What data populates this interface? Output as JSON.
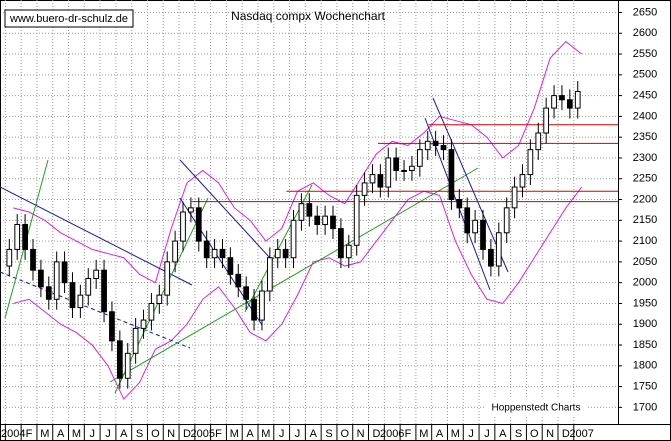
{
  "chart_data": {
    "type": "candlestick",
    "title": "Nasdaq compx Wochenchart",
    "watermark": "www.buero-dr-schulz.de",
    "source": "Hoppenstedt Charts",
    "xlim": [
      -0.15,
      38.8
    ],
    "ylim": [
      1660,
      2680
    ],
    "yticks": [
      1700,
      1750,
      1800,
      1850,
      1900,
      1950,
      2000,
      2050,
      2100,
      2150,
      2200,
      2250,
      2300,
      2350,
      2400,
      2450,
      2500,
      2550,
      2600,
      2650
    ],
    "xticks": [
      {
        "value": 0,
        "label": "2004"
      },
      {
        "value": 1,
        "label": "F"
      },
      {
        "value": 2,
        "label": "M"
      },
      {
        "value": 3,
        "label": "A"
      },
      {
        "value": 4,
        "label": "M"
      },
      {
        "value": 5,
        "label": "J"
      },
      {
        "value": 6,
        "label": "J"
      },
      {
        "value": 7,
        "label": "A"
      },
      {
        "value": 8,
        "label": "S"
      },
      {
        "value": 9,
        "label": "O"
      },
      {
        "value": 10,
        "label": "N"
      },
      {
        "value": 11,
        "label": "D"
      },
      {
        "value": 12,
        "label": "2005"
      },
      {
        "value": 13,
        "label": "F"
      },
      {
        "value": 14,
        "label": "M"
      },
      {
        "value": 15,
        "label": "A"
      },
      {
        "value": 16,
        "label": "M"
      },
      {
        "value": 17,
        "label": "J"
      },
      {
        "value": 18,
        "label": "J"
      },
      {
        "value": 19,
        "label": "A"
      },
      {
        "value": 20,
        "label": "S"
      },
      {
        "value": 21,
        "label": "O"
      },
      {
        "value": 22,
        "label": "N"
      },
      {
        "value": 23,
        "label": "D"
      },
      {
        "value": 24,
        "label": "2006"
      },
      {
        "value": 25,
        "label": "F"
      },
      {
        "value": 26,
        "label": "M"
      },
      {
        "value": 27,
        "label": "A"
      },
      {
        "value": 28,
        "label": "M"
      },
      {
        "value": 29,
        "label": "J"
      },
      {
        "value": 30,
        "label": "J"
      },
      {
        "value": 31,
        "label": "A"
      },
      {
        "value": 32,
        "label": "S"
      },
      {
        "value": 33,
        "label": "O"
      },
      {
        "value": 34,
        "label": "N"
      },
      {
        "value": 35,
        "label": "D"
      },
      {
        "value": 36,
        "label": "2007"
      }
    ],
    "grid": true,
    "up_color": "#ffffff",
    "down_color": "#000000",
    "x": [
      0.25,
      0.75,
      1.25,
      1.75,
      2.25,
      2.75,
      3.25,
      3.75,
      4.25,
      4.75,
      5.25,
      5.75,
      6.25,
      6.75,
      7.25,
      7.75,
      8.25,
      8.75,
      9.25,
      9.75,
      10.25,
      10.75,
      11.25,
      11.75,
      12.25,
      12.75,
      13.25,
      13.75,
      14.25,
      14.75,
      15.25,
      15.75,
      16.25,
      16.75,
      17.25,
      17.75,
      18.25,
      18.75,
      19.25,
      19.75,
      20.25,
      20.75,
      21.25,
      21.75,
      22.25,
      22.75,
      23.25,
      23.75,
      24.25,
      24.75,
      25.25,
      25.75,
      26.25,
      26.75,
      27.25,
      27.75,
      28.25,
      28.75,
      29.25,
      29.75,
      30.25,
      30.75,
      31.25,
      31.75,
      32.25,
      32.75,
      33.25,
      33.75,
      34.25,
      34.75,
      35.25,
      35.75,
      36.25
    ],
    "open": [
      2040,
      2080,
      2140,
      2080,
      2030,
      1990,
      1960,
      2050,
      2000,
      1940,
      1970,
      2010,
      2030,
      1930,
      1860,
      1770,
      1830,
      1890,
      1910,
      1950,
      1970,
      2050,
      2100,
      2170,
      2180,
      2100,
      2060,
      2080,
      2060,
      2020,
      1990,
      1960,
      1910,
      1980,
      2060,
      2080,
      2060,
      2150,
      2190,
      2160,
      2140,
      2160,
      2130,
      2060,
      2090,
      2210,
      2240,
      2260,
      2230,
      2300,
      2270,
      2270,
      2280,
      2320,
      2340,
      2330,
      2320,
      2200,
      2180,
      2120,
      2150,
      2080,
      2040,
      2120,
      2180,
      2230,
      2260,
      2320,
      2360,
      2420,
      2450,
      2440,
      2420
    ],
    "high": [
      2105,
      2165,
      2165,
      2105,
      2055,
      2015,
      2075,
      2075,
      2025,
      1995,
      2035,
      2055,
      2055,
      1955,
      1885,
      1855,
      1915,
      1935,
      1975,
      1995,
      2075,
      2125,
      2195,
      2205,
      2205,
      2125,
      2105,
      2105,
      2085,
      2045,
      2015,
      1985,
      2005,
      2085,
      2105,
      2105,
      2175,
      2215,
      2215,
      2185,
      2185,
      2185,
      2155,
      2115,
      2235,
      2265,
      2285,
      2285,
      2325,
      2325,
      2295,
      2305,
      2345,
      2365,
      2365,
      2355,
      2345,
      2225,
      2205,
      2175,
      2175,
      2105,
      2145,
      2205,
      2255,
      2285,
      2345,
      2385,
      2445,
      2475,
      2475,
      2465,
      2485
    ],
    "low": [
      2015,
      2055,
      2055,
      2005,
      1965,
      1935,
      1935,
      1975,
      1915,
      1915,
      1945,
      1985,
      1905,
      1835,
      1745,
      1745,
      1805,
      1865,
      1885,
      1925,
      1945,
      2025,
      2075,
      2145,
      2075,
      2035,
      2035,
      2035,
      1995,
      1965,
      1935,
      1885,
      1885,
      1955,
      2035,
      2035,
      2035,
      2125,
      2135,
      2115,
      2115,
      2105,
      2035,
      2035,
      2065,
      2185,
      2215,
      2205,
      2205,
      2245,
      2245,
      2245,
      2255,
      2295,
      2305,
      2295,
      2175,
      2155,
      2095,
      2095,
      2055,
      2015,
      2015,
      2095,
      2155,
      2205,
      2235,
      2295,
      2335,
      2395,
      2415,
      2395,
      2395
    ],
    "close": [
      2080,
      2140,
      2080,
      2030,
      1990,
      1960,
      2050,
      2000,
      1940,
      1970,
      2010,
      2030,
      1930,
      1860,
      1770,
      1830,
      1890,
      1910,
      1950,
      1970,
      2050,
      2100,
      2170,
      2180,
      2100,
      2060,
      2080,
      2060,
      2020,
      1990,
      1960,
      1910,
      1980,
      2060,
      2080,
      2060,
      2150,
      2190,
      2160,
      2140,
      2160,
      2130,
      2060,
      2090,
      2210,
      2240,
      2260,
      2230,
      2300,
      2270,
      2270,
      2280,
      2320,
      2340,
      2330,
      2320,
      2200,
      2180,
      2120,
      2150,
      2080,
      2040,
      2120,
      2180,
      2230,
      2260,
      2320,
      2360,
      2420,
      2450,
      2440,
      2420,
      2460
    ],
    "bands": {
      "color": "#e020e0",
      "x": [
        0.5,
        1.5,
        2.5,
        3.5,
        4.5,
        5.5,
        6.5,
        7.5,
        8.5,
        9.5,
        10.5,
        11.5,
        12.5,
        13.5,
        14.5,
        15.5,
        16.5,
        17.5,
        18.5,
        19.5,
        20.5,
        21.5,
        22.5,
        23.5,
        24.5,
        25.5,
        26.5,
        27.5,
        28.5,
        29.5,
        30.5,
        31.5,
        32.5,
        33.5,
        34.5,
        35.5,
        36.5
      ],
      "upper": [
        2180,
        2170,
        2150,
        2120,
        2100,
        2080,
        2070,
        2060,
        2020,
        2000,
        2130,
        2240,
        2270,
        2240,
        2180,
        2150,
        2100,
        2130,
        2220,
        2240,
        2210,
        2190,
        2250,
        2310,
        2340,
        2330,
        2360,
        2400,
        2390,
        2380,
        2350,
        2300,
        2330,
        2420,
        2540,
        2580,
        2550
      ],
      "lower": [
        1950,
        1960,
        1930,
        1900,
        1880,
        1850,
        1800,
        1720,
        1760,
        1840,
        1860,
        1900,
        1960,
        1990,
        1940,
        1880,
        1860,
        1900,
        1970,
        2050,
        2060,
        2040,
        2050,
        2100,
        2150,
        2200,
        2220,
        2210,
        2100,
        2020,
        1960,
        1950,
        2000,
        2060,
        2120,
        2180,
        2230
      ]
    },
    "levels": {
      "color": "#d00000",
      "values": [
        2380,
        2335,
        2220,
        2195
      ],
      "from": [
        26.8,
        23.6,
        17.8,
        11.8
      ]
    }
  }
}
